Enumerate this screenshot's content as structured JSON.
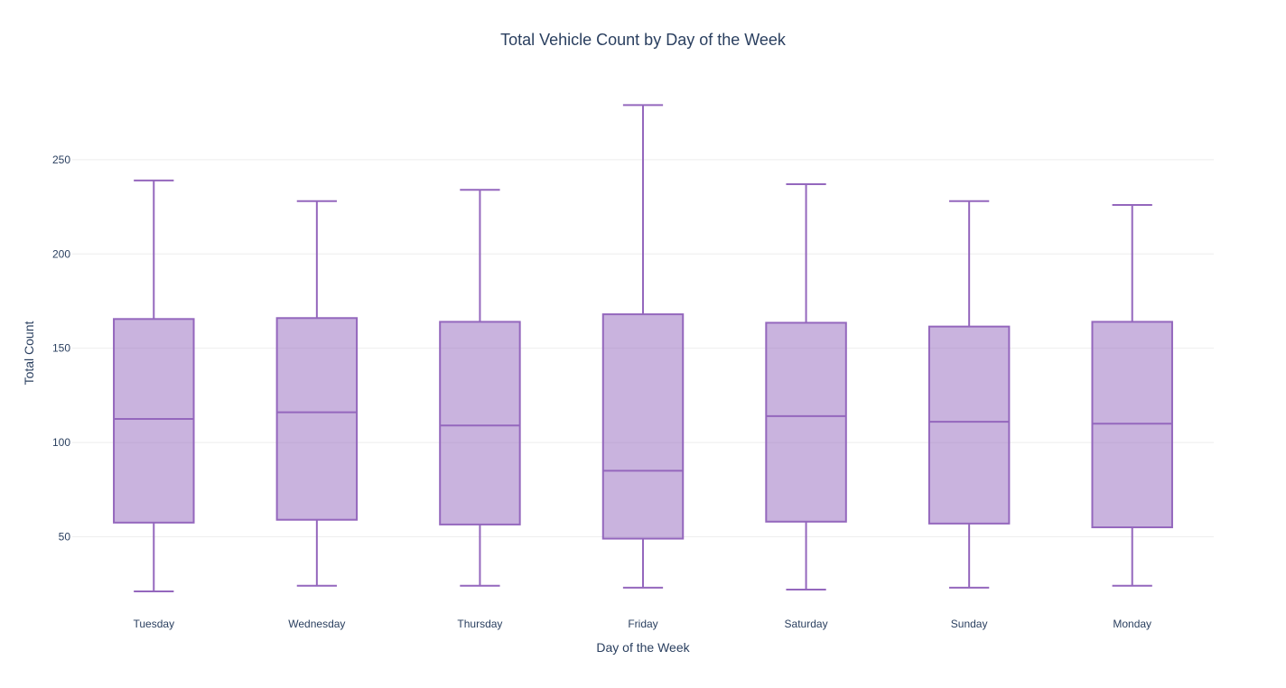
{
  "chart_data": {
    "type": "box",
    "title": "Total Vehicle Count by Day of the Week",
    "xlabel": "Day of the Week",
    "ylabel": "Total Count",
    "categories": [
      "Tuesday",
      "Wednesday",
      "Thursday",
      "Friday",
      "Saturday",
      "Sunday",
      "Monday"
    ],
    "boxes": [
      {
        "name": "Tuesday",
        "min": 21,
        "q1": 57.5,
        "median": 112.5,
        "q3": 165.5,
        "max": 239
      },
      {
        "name": "Wednesday",
        "min": 24,
        "q1": 59,
        "median": 116,
        "q3": 166,
        "max": 228
      },
      {
        "name": "Thursday",
        "min": 24,
        "q1": 56.5,
        "median": 109,
        "q3": 164,
        "max": 234
      },
      {
        "name": "Friday",
        "min": 23,
        "q1": 49,
        "median": 85,
        "q3": 168,
        "max": 279
      },
      {
        "name": "Saturday",
        "min": 22,
        "q1": 58,
        "median": 114,
        "q3": 163.5,
        "max": 237
      },
      {
        "name": "Sunday",
        "min": 23,
        "q1": 57,
        "median": 111,
        "q3": 161.5,
        "max": 228
      },
      {
        "name": "Monday",
        "min": 24,
        "q1": 55,
        "median": 110,
        "q3": 164,
        "max": 226
      }
    ],
    "yticks": [
      50,
      100,
      150,
      200,
      250
    ],
    "ylim": [
      10,
      294
    ],
    "grid": true,
    "box_color": "#9467bd",
    "box_fill": "rgba(148,103,189,0.5)"
  }
}
